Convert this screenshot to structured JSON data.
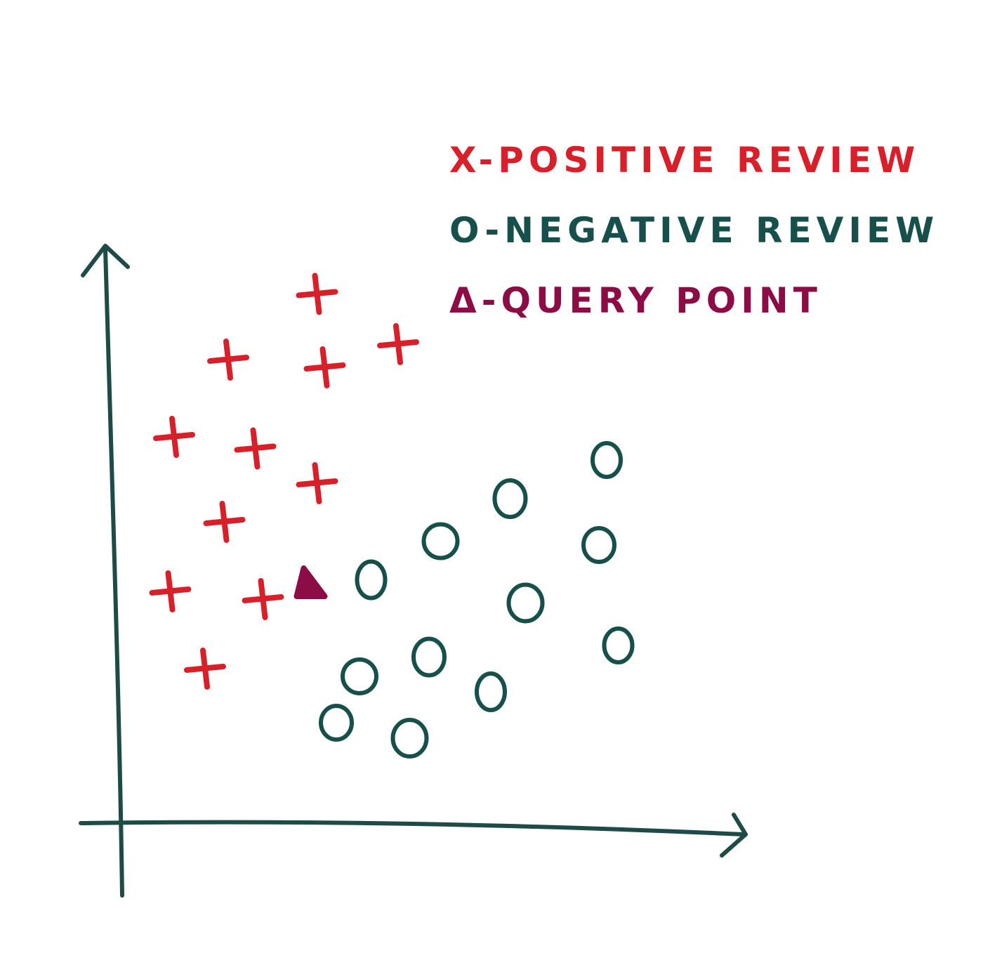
{
  "chart_data": {
    "type": "scatter",
    "title": "",
    "xlabel": "",
    "ylabel": "",
    "grid": false,
    "axis_ticks": false,
    "legend_placement": "top-right",
    "colors": {
      "axis": "#1f4b47",
      "positive": "#d8202a",
      "negative": "#17504b",
      "query": "#8c0d45"
    },
    "legend": [
      {
        "text": "X-POSITIVE REVIEW",
        "series": "positive"
      },
      {
        "text": "O-NEGATIVE REVIEW",
        "series": "negative"
      },
      {
        "text": "Δ-QUERY POINT",
        "series": "query"
      }
    ],
    "series": [
      {
        "key": "positive",
        "marker": "cross",
        "points": [
          {
            "x": 2.65,
            "y": 6.85
          },
          {
            "x": 1.5,
            "y": 6.0
          },
          {
            "x": 2.75,
            "y": 5.9
          },
          {
            "x": 3.7,
            "y": 6.2
          },
          {
            "x": 0.8,
            "y": 5.0
          },
          {
            "x": 1.85,
            "y": 4.85
          },
          {
            "x": 2.65,
            "y": 4.4
          },
          {
            "x": 1.45,
            "y": 3.9
          },
          {
            "x": 0.75,
            "y": 3.0
          },
          {
            "x": 1.95,
            "y": 2.9
          },
          {
            "x": 1.2,
            "y": 2.0
          }
        ]
      },
      {
        "key": "negative",
        "marker": "circle",
        "points": [
          {
            "x": 6.4,
            "y": 4.7
          },
          {
            "x": 5.15,
            "y": 4.2
          },
          {
            "x": 4.25,
            "y": 3.65
          },
          {
            "x": 3.35,
            "y": 3.15
          },
          {
            "x": 6.3,
            "y": 3.6
          },
          {
            "x": 5.35,
            "y": 2.85
          },
          {
            "x": 6.55,
            "y": 2.3
          },
          {
            "x": 4.1,
            "y": 2.15
          },
          {
            "x": 3.2,
            "y": 1.9
          },
          {
            "x": 4.9,
            "y": 1.7
          },
          {
            "x": 2.9,
            "y": 1.3
          },
          {
            "x": 3.85,
            "y": 1.1
          }
        ]
      },
      {
        "key": "query",
        "marker": "triangle",
        "points": [
          {
            "x": 2.55,
            "y": 3.1
          }
        ]
      }
    ]
  }
}
